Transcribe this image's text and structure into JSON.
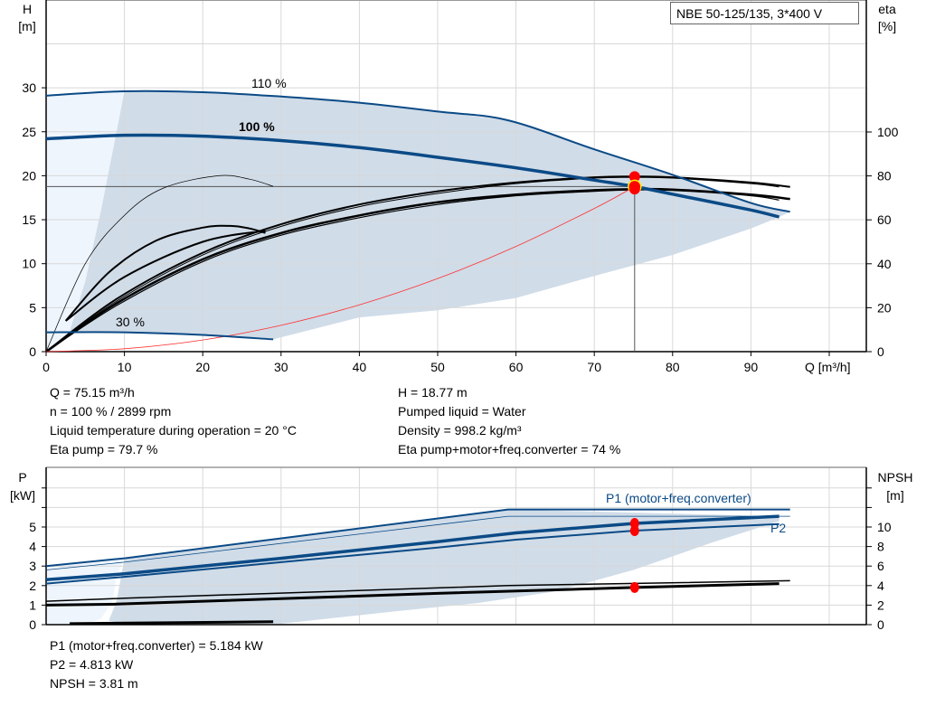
{
  "title": "NBE 50-125/135, 3*400 V",
  "chart_data": [
    {
      "type": "line",
      "name_id": "head-efficiency",
      "xlabel": "Q [m³/h]",
      "ylabel": [
        "H",
        "[m]"
      ],
      "y2label": [
        "eta",
        "[%]"
      ],
      "xlim": [
        0,
        104.7
      ],
      "ylim": [
        0,
        40
      ],
      "y2lim": [
        0,
        160
      ],
      "x_ticks": [
        0,
        10,
        20,
        30,
        40,
        50,
        60,
        70,
        80,
        90
      ],
      "y_ticks": [
        0,
        5,
        10,
        15,
        20,
        25,
        30
      ],
      "y2_ticks": [
        0,
        20,
        40,
        60,
        80,
        100
      ],
      "grid": true,
      "curve_labels": [
        "110 %",
        "100 %",
        "30 %"
      ],
      "head_curves": [
        {
          "label": "110 %",
          "points": [
            [
              0,
              29.1
            ],
            [
              10,
              29.6
            ],
            [
              20,
              29.5
            ],
            [
              30,
              29.0
            ],
            [
              40,
              28.3
            ],
            [
              50,
              27.3
            ],
            [
              59,
              26.3
            ],
            [
              70,
              23.0
            ],
            [
              80,
              20.1
            ],
            [
              90,
              16.9
            ],
            [
              95,
              15.9
            ]
          ]
        },
        {
          "label": "100 %",
          "points": [
            [
              0,
              24.2
            ],
            [
              10,
              24.6
            ],
            [
              20,
              24.5
            ],
            [
              30,
              24.0
            ],
            [
              40,
              23.2
            ],
            [
              50,
              22.1
            ],
            [
              60,
              20.9
            ],
            [
              70,
              19.5
            ],
            [
              75.15,
              18.77
            ],
            [
              80,
              17.9
            ],
            [
              90,
              16.1
            ],
            [
              93.6,
              15.3
            ]
          ]
        },
        {
          "label": "30 %",
          "points": [
            [
              0,
              2.2
            ],
            [
              10,
              2.2
            ],
            [
              20,
              1.9
            ],
            [
              29,
              1.4
            ]
          ]
        }
      ],
      "system_curve": [
        [
          0,
          0
        ],
        [
          10,
          0.33
        ],
        [
          20,
          1.33
        ],
        [
          30,
          2.99
        ],
        [
          40,
          5.32
        ],
        [
          50,
          8.31
        ],
        [
          60,
          11.96
        ],
        [
          70,
          16.28
        ],
        [
          75.15,
          18.77
        ]
      ],
      "efficiency_curves_percent": [
        {
          "points": [
            [
              0,
              0
            ],
            [
              9,
              24
            ],
            [
              20,
              45
            ],
            [
              30,
              58
            ],
            [
              40,
              67
            ],
            [
              50,
              73
            ],
            [
              60,
              77
            ],
            [
              70,
              79.4
            ],
            [
              75.15,
              79.7
            ],
            [
              80,
              79.4
            ],
            [
              90,
              77
            ],
            [
              95,
              75
            ]
          ]
        },
        {
          "points": [
            [
              0,
              0
            ],
            [
              9,
              23
            ],
            [
              20,
              44
            ],
            [
              30,
              57
            ],
            [
              40,
              66
            ],
            [
              50,
              72
            ],
            [
              60,
              76.5
            ],
            [
              70,
              79
            ],
            [
              75.15,
              79.3
            ],
            [
              80,
              79
            ],
            [
              90,
              76.5
            ],
            [
              93.6,
              75
            ]
          ]
        },
        {
          "points": [
            [
              0,
              0
            ],
            [
              9,
              22
            ],
            [
              20,
              42
            ],
            [
              30,
              54
            ],
            [
              40,
              62
            ],
            [
              50,
              68
            ],
            [
              60,
              71.5
            ],
            [
              70,
              73.5
            ],
            [
              75.15,
              74
            ],
            [
              80,
              73.8
            ],
            [
              90,
              71.5
            ],
            [
              95,
              69.5
            ]
          ]
        },
        {
          "points": [
            [
              0,
              0
            ],
            [
              9,
              21
            ],
            [
              20,
              41
            ],
            [
              30,
              53
            ],
            [
              40,
              61
            ],
            [
              50,
              67
            ],
            [
              60,
              71
            ],
            [
              70,
              73
            ],
            [
              75.15,
              73.6
            ],
            [
              80,
              73.4
            ],
            [
              90,
              71
            ],
            [
              93.6,
              69
            ]
          ]
        },
        {
          "points": [
            [
              2.5,
              14
            ],
            [
              10,
              34
            ],
            [
              20,
              50
            ],
            [
              28,
              55
            ]
          ]
        }
      ],
      "min_curves": [
        {
          "points": [
            [
              0,
              0
            ],
            [
              5,
              10
            ],
            [
              10,
              15.5
            ],
            [
              15,
              18.6
            ],
            [
              22,
              20
            ],
            [
              26,
              19.6
            ],
            [
              29,
              18.8
            ]
          ]
        },
        {
          "points": [
            [
              2.5,
              3.5
            ],
            [
              8,
              9
            ],
            [
              14,
              12.6
            ],
            [
              20,
              14.1
            ],
            [
              23.5,
              14.3
            ],
            [
              26,
              14.0
            ],
            [
              28,
              13.5
            ]
          ]
        }
      ],
      "operating_point": {
        "Q": 75.15,
        "H": 18.77,
        "eta_pump": 79.7,
        "eta_total": 74
      }
    },
    {
      "type": "line",
      "name_id": "power-npsh",
      "ylabel": [
        "P",
        "[kW]"
      ],
      "y2label": [
        "NPSH",
        "[m]"
      ],
      "xlim": [
        0,
        104.7
      ],
      "ylim": [
        0,
        8
      ],
      "y2lim": [
        0,
        16
      ],
      "y_ticks": [
        0,
        1,
        2,
        3,
        4,
        5
      ],
      "y2_ticks": [
        0,
        2,
        4,
        6,
        8,
        10
      ],
      "grid": true,
      "series_labels": [
        "P1 (motor+freq.converter)",
        "P2"
      ],
      "power_curves_kw": [
        {
          "name": "P1 max",
          "points": [
            [
              0,
              3.0
            ],
            [
              10,
              3.4
            ],
            [
              59,
              5.9
            ],
            [
              95,
              5.9
            ]
          ]
        },
        {
          "name": "P1 limit",
          "points": [
            [
              0,
              2.8
            ],
            [
              10,
              3.2
            ],
            [
              59,
              5.55
            ],
            [
              95,
              5.55
            ]
          ]
        },
        {
          "name": "P1 (motor+freq.converter)",
          "points": [
            [
              0,
              2.3
            ],
            [
              10,
              2.6
            ],
            [
              30,
              3.4
            ],
            [
              50,
              4.25
            ],
            [
              60,
              4.7
            ],
            [
              75.15,
              5.184
            ],
            [
              93.6,
              5.55
            ]
          ]
        },
        {
          "name": "P2",
          "points": [
            [
              0,
              2.1
            ],
            [
              10,
              2.45
            ],
            [
              30,
              3.2
            ],
            [
              50,
              3.95
            ],
            [
              60,
              4.35
            ],
            [
              75.15,
              4.813
            ],
            [
              93.6,
              5.15
            ]
          ]
        }
      ],
      "npsh_curves_m": [
        {
          "points": [
            [
              0,
              2.4
            ],
            [
              10,
              2.7
            ],
            [
              59,
              4.0
            ],
            [
              95,
              4.5
            ]
          ]
        },
        {
          "points": [
            [
              0,
              2.0
            ],
            [
              9,
              2.1
            ],
            [
              50,
              3.2
            ],
            [
              75.15,
              3.81
            ],
            [
              93.6,
              4.2
            ]
          ]
        },
        {
          "points": [
            [
              3,
              0.1
            ],
            [
              29,
              0.3
            ]
          ]
        }
      ],
      "operating_point": {
        "Q": 75.15,
        "P1": 5.184,
        "P2": 4.813,
        "NPSH": 3.81
      }
    }
  ],
  "info_top": {
    "left": [
      "Q = 75.15 m³/h",
      "n = 100 % / 2899 rpm",
      "Liquid temperature during operation = 20 °C",
      "Eta pump = 79.7 %"
    ],
    "right": [
      "H = 18.77 m",
      "Pumped liquid = Water",
      "Density = 998.2 kg/m³",
      "Eta pump+motor+freq.converter = 74 %"
    ]
  },
  "info_bottom": [
    "P1 (motor+freq.converter) = 5.184 kW",
    "P2 = 4.813 kW",
    "NPSH = 3.81 m"
  ],
  "colors": {
    "curve_blue": "#0b4a86",
    "shade": "#d0dce8",
    "shade_light": "#eef5fd",
    "grid": "#d8d8d8",
    "system_curve": "#ff3030",
    "point": "#ff0000",
    "point_ring": "#ffee00"
  }
}
